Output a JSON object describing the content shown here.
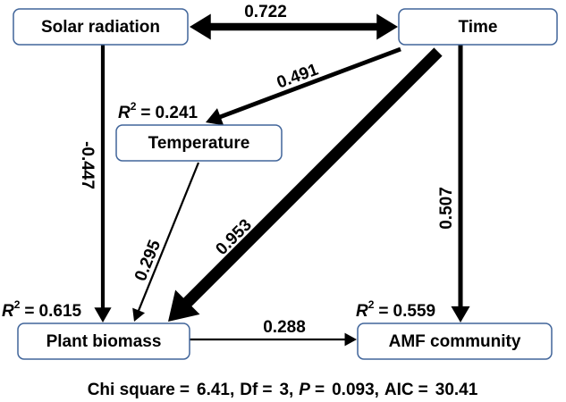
{
  "nodes": [
    {
      "label": "Solar radiation"
    },
    {
      "label": "Time"
    },
    {
      "label": "Temperature",
      "r2": 0.241
    },
    {
      "label": "Plant biomass",
      "r2": 0.615
    },
    {
      "label": "AMF community",
      "r2": 0.559
    }
  ],
  "r2_symbol": "R",
  "r2_power": "2",
  "equals": "=",
  "edges": [
    {
      "value": 0.722,
      "bidirectional": true
    },
    {
      "value": 0.491
    },
    {
      "value": 0.953
    },
    {
      "value": 0.507
    },
    {
      "value": -0.447
    },
    {
      "value": 0.295
    },
    {
      "value": 0.288
    }
  ],
  "footer": {
    "separator": ",",
    "items": [
      {
        "name": "Chi square",
        "value": 6.41
      },
      {
        "name": "Df",
        "value": 3
      },
      {
        "name": "P",
        "value": 0.093,
        "italic": true
      },
      {
        "name": "AIC",
        "value": 30.41
      }
    ]
  }
}
